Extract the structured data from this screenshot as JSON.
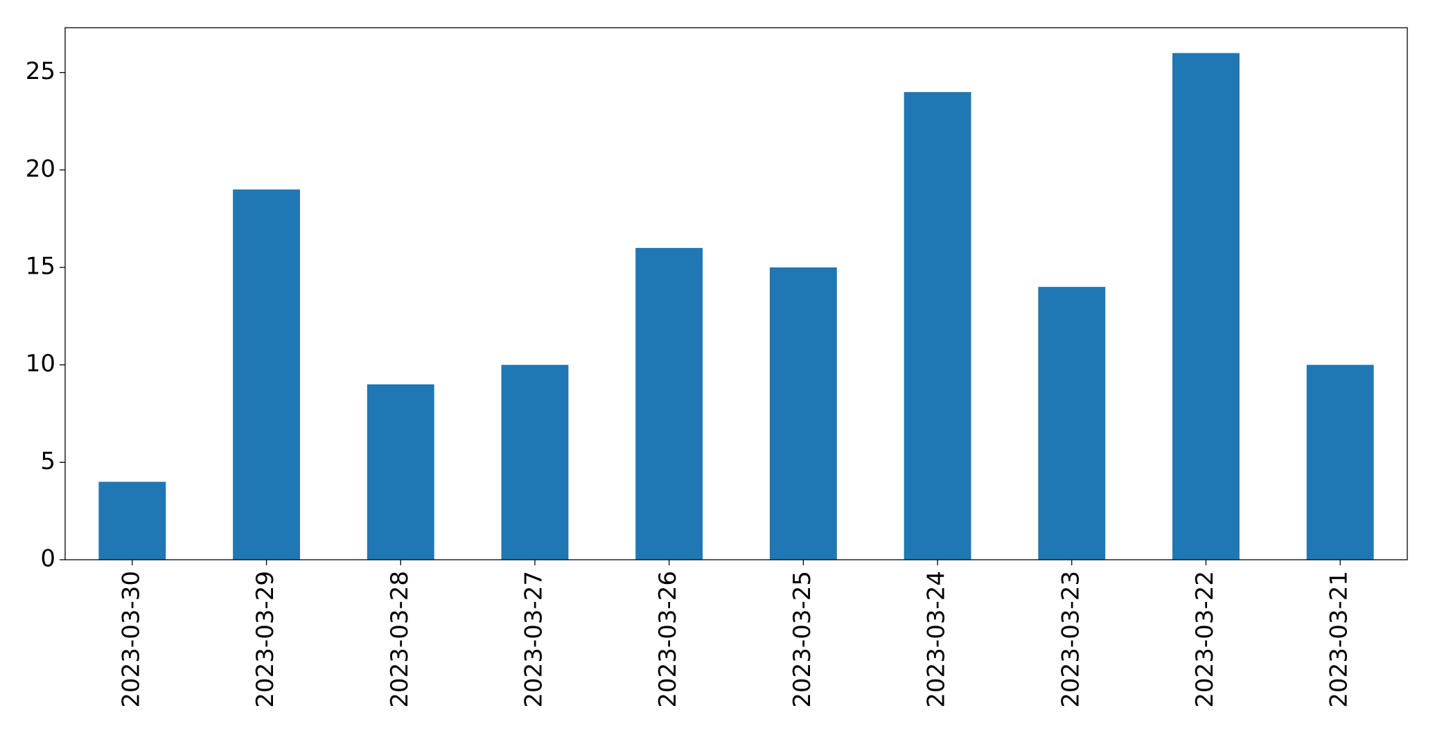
{
  "chart_data": {
    "type": "bar",
    "categories": [
      "2023-03-30",
      "2023-03-29",
      "2023-03-28",
      "2023-03-27",
      "2023-03-26",
      "2023-03-25",
      "2023-03-24",
      "2023-03-23",
      "2023-03-22",
      "2023-03-21"
    ],
    "values": [
      4,
      19,
      9,
      10,
      16,
      15,
      24,
      14,
      26,
      10
    ],
    "color": "#1f77b4",
    "ylim": [
      0,
      27.3
    ],
    "yticks": [
      0,
      5,
      10,
      15,
      20,
      25
    ],
    "grid": false
  }
}
